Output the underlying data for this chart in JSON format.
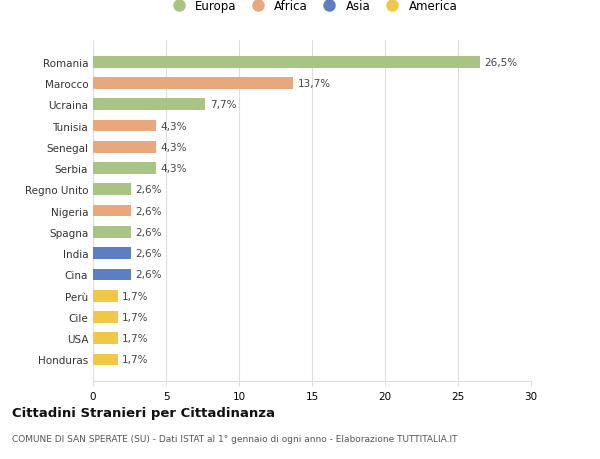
{
  "categories": [
    "Romania",
    "Marocco",
    "Ucraina",
    "Tunisia",
    "Senegal",
    "Serbia",
    "Regno Unito",
    "Nigeria",
    "Spagna",
    "India",
    "Cina",
    "Perù",
    "Cile",
    "USA",
    "Honduras"
  ],
  "values": [
    26.5,
    13.7,
    7.7,
    4.3,
    4.3,
    4.3,
    2.6,
    2.6,
    2.6,
    2.6,
    2.6,
    1.7,
    1.7,
    1.7,
    1.7
  ],
  "labels": [
    "26,5%",
    "13,7%",
    "7,7%",
    "4,3%",
    "4,3%",
    "4,3%",
    "2,6%",
    "2,6%",
    "2,6%",
    "2,6%",
    "2,6%",
    "1,7%",
    "1,7%",
    "1,7%",
    "1,7%"
  ],
  "continents": [
    "Europa",
    "Africa",
    "Europa",
    "Africa",
    "Africa",
    "Europa",
    "Europa",
    "Africa",
    "Europa",
    "Asia",
    "Asia",
    "America",
    "America",
    "America",
    "America"
  ],
  "continent_colors": {
    "Europa": "#a8c484",
    "Africa": "#e8a87c",
    "Asia": "#5b7fc1",
    "America": "#f0c846"
  },
  "legend_order": [
    "Europa",
    "Africa",
    "Asia",
    "America"
  ],
  "title": "Cittadini Stranieri per Cittadinanza",
  "subtitle": "COMUNE DI SAN SPERATE (SU) - Dati ISTAT al 1° gennaio di ogni anno - Elaborazione TUTTITALIA.IT",
  "xlim": [
    0,
    30
  ],
  "xticks": [
    0,
    5,
    10,
    15,
    20,
    25,
    30
  ],
  "background_color": "#ffffff",
  "grid_color": "#dddddd"
}
